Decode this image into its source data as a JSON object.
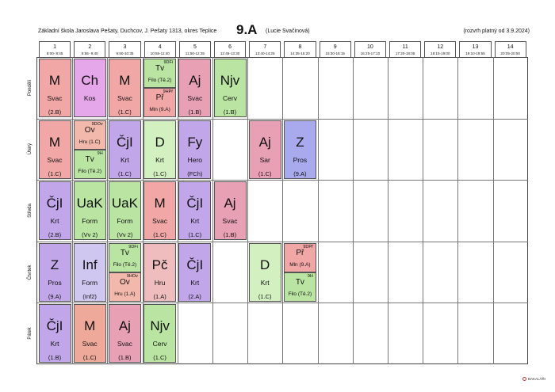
{
  "header": {
    "school": "Základní škola Jaroslava Pešaty, Duchcov, J. Pešaty 1313, okres Teplice",
    "class_name": "9.A",
    "teacher": "(Lucie Svačinová)",
    "valid_from": "(rozvrh platný od 3.9.2024)"
  },
  "periods": [
    {
      "num": "1",
      "time": "8:00- 8:45"
    },
    {
      "num": "2",
      "time": "8:55- 9:40"
    },
    {
      "num": "3",
      "time": "9:50-10:35"
    },
    {
      "num": "4",
      "time": "10:55-11:40"
    },
    {
      "num": "5",
      "time": "11:50-12:35"
    },
    {
      "num": "6",
      "time": "12:45-13:30"
    },
    {
      "num": "7",
      "time": "13:40-14:25"
    },
    {
      "num": "8",
      "time": "14:35-15:20"
    },
    {
      "num": "9",
      "time": "15:30-16:15"
    },
    {
      "num": "10",
      "time": "16:25-17:10"
    },
    {
      "num": "11",
      "time": "17:20-18:05"
    },
    {
      "num": "12",
      "time": "18:15-19:00"
    },
    {
      "num": "13",
      "time": "19:10-19:55"
    },
    {
      "num": "14",
      "time": "20:05-20:50"
    }
  ],
  "days": [
    "Pondělí",
    "Úterý",
    "Středa",
    "Čtvrtek",
    "Pátek"
  ],
  "lessons": [
    {
      "day": 0,
      "period": 0,
      "subject": "M",
      "teacher": "Svac",
      "room": "(2.B)",
      "color": "#f2a7a7"
    },
    {
      "day": 0,
      "period": 1,
      "subject": "Ch",
      "teacher": "Kos",
      "room": "",
      "color": "#e5a6ea"
    },
    {
      "day": 0,
      "period": 2,
      "subject": "M",
      "teacher": "Svac",
      "room": "(1.C)",
      "color": "#f2a7a7"
    },
    {
      "day": 0,
      "period": 4,
      "subject": "Aj",
      "teacher": "Svac",
      "room": "(1.B)",
      "color": "#e8a0b5"
    },
    {
      "day": 0,
      "period": 5,
      "subject": "Njv",
      "teacher": "Cerv",
      "room": "(1.B)",
      "color": "#b9e4a2"
    },
    {
      "day": 1,
      "period": 0,
      "subject": "M",
      "teacher": "Svac",
      "room": "(1.C)",
      "color": "#f2a7a7"
    },
    {
      "day": 1,
      "period": 2,
      "subject": "ČjI",
      "teacher": "Krt",
      "room": "(1.C)",
      "color": "#c1a6ea"
    },
    {
      "day": 1,
      "period": 3,
      "subject": "D",
      "teacher": "Krt",
      "room": "(1.C)",
      "color": "#d3f0c1"
    },
    {
      "day": 1,
      "period": 4,
      "subject": "Fy",
      "teacher": "Hero",
      "room": "(FCh)",
      "color": "#c1a6ea"
    },
    {
      "day": 1,
      "period": 6,
      "subject": "Aj",
      "teacher": "Sar",
      "room": "(1.C)",
      "color": "#e8a0b5"
    },
    {
      "day": 1,
      "period": 7,
      "subject": "Z",
      "teacher": "Pros",
      "room": "(9.A)",
      "color": "#a9aaee"
    },
    {
      "day": 2,
      "period": 0,
      "subject": "ČjI",
      "teacher": "Krt",
      "room": "(2.B)",
      "color": "#c1a6ea"
    },
    {
      "day": 2,
      "period": 1,
      "subject": "UaK",
      "teacher": "Form",
      "room": "(Vv 2)",
      "color": "#b9e4a2"
    },
    {
      "day": 2,
      "period": 2,
      "subject": "UaK",
      "teacher": "Form",
      "room": "(Vv 2)",
      "color": "#b9e4a2"
    },
    {
      "day": 2,
      "period": 3,
      "subject": "M",
      "teacher": "Svac",
      "room": "(1.C)",
      "color": "#f2a7a7"
    },
    {
      "day": 2,
      "period": 4,
      "subject": "ČjI",
      "teacher": "Krt",
      "room": "(1.C)",
      "color": "#c1a6ea"
    },
    {
      "day": 2,
      "period": 5,
      "subject": "Aj",
      "teacher": "Svac",
      "room": "(1.B)",
      "color": "#e8a0b5"
    },
    {
      "day": 3,
      "period": 0,
      "subject": "Z",
      "teacher": "Pros",
      "room": "(9.A)",
      "color": "#c1a6ea"
    },
    {
      "day": 3,
      "period": 1,
      "subject": "Inf",
      "teacher": "Form",
      "room": "(Inf2)",
      "color": "#cfc7ef"
    },
    {
      "day": 3,
      "period": 3,
      "subject": "Pč",
      "teacher": "Hru",
      "room": "(1.A)",
      "color": "#efbdbd"
    },
    {
      "day": 3,
      "period": 4,
      "subject": "ČjI",
      "teacher": "Krt",
      "room": "(2.A)",
      "color": "#c1a6ea"
    },
    {
      "day": 3,
      "period": 6,
      "subject": "D",
      "teacher": "Krt",
      "room": "(1.C)",
      "color": "#d3f0c1"
    },
    {
      "day": 4,
      "period": 0,
      "subject": "ČjI",
      "teacher": "Krt",
      "room": "(1.B)",
      "color": "#c1a6ea"
    },
    {
      "day": 4,
      "period": 1,
      "subject": "M",
      "teacher": "Svac",
      "room": "(1.C)",
      "color": "#eea99a"
    },
    {
      "day": 4,
      "period": 2,
      "subject": "Aj",
      "teacher": "Svac",
      "room": "(1.B)",
      "color": "#e8a0b5"
    },
    {
      "day": 4,
      "period": 3,
      "subject": "Njv",
      "teacher": "Cerv",
      "room": "(1.C)",
      "color": "#b9e4a2"
    }
  ],
  "split_lessons": [
    {
      "day": 0,
      "period": 3,
      "slot": 0,
      "group": "9DFi",
      "subject": "Tv",
      "detail": "Filo  (Tě.2)",
      "color": "#b9e4a2"
    },
    {
      "day": 0,
      "period": 3,
      "slot": 1,
      "group": "9HPř",
      "subject": "Př",
      "detail": "Mln  (9.A)",
      "color": "#f2a7a7"
    },
    {
      "day": 1,
      "period": 1,
      "slot": 0,
      "group": "9DOv",
      "subject": "Ov",
      "detail": "Hru  (1.C)",
      "color": "#f2b8ab"
    },
    {
      "day": 1,
      "period": 1,
      "slot": 1,
      "group": "9H",
      "subject": "Tv",
      "detail": "Filo  (Tě.2)",
      "color": "#b9e4a2"
    },
    {
      "day": 3,
      "period": 2,
      "slot": 0,
      "group": "9DFi",
      "subject": "Tv",
      "detail": "Filo  (Tě.2)",
      "color": "#b9e4a2"
    },
    {
      "day": 3,
      "period": 2,
      "slot": 1,
      "group": "9HOv",
      "subject": "Ov",
      "detail": "Hru  (1.A)",
      "color": "#f2b8ab"
    },
    {
      "day": 3,
      "period": 7,
      "slot": 0,
      "group": "9DPř",
      "subject": "Př",
      "detail": "Mln  (9.A)",
      "color": "#f2a7a7"
    },
    {
      "day": 3,
      "period": 7,
      "slot": 1,
      "group": "9H",
      "subject": "Tv",
      "detail": "Filo  (Tě.2)",
      "color": "#b9e4a2"
    }
  ],
  "footer": {
    "logo_text": "BAKALÁŘI"
  }
}
